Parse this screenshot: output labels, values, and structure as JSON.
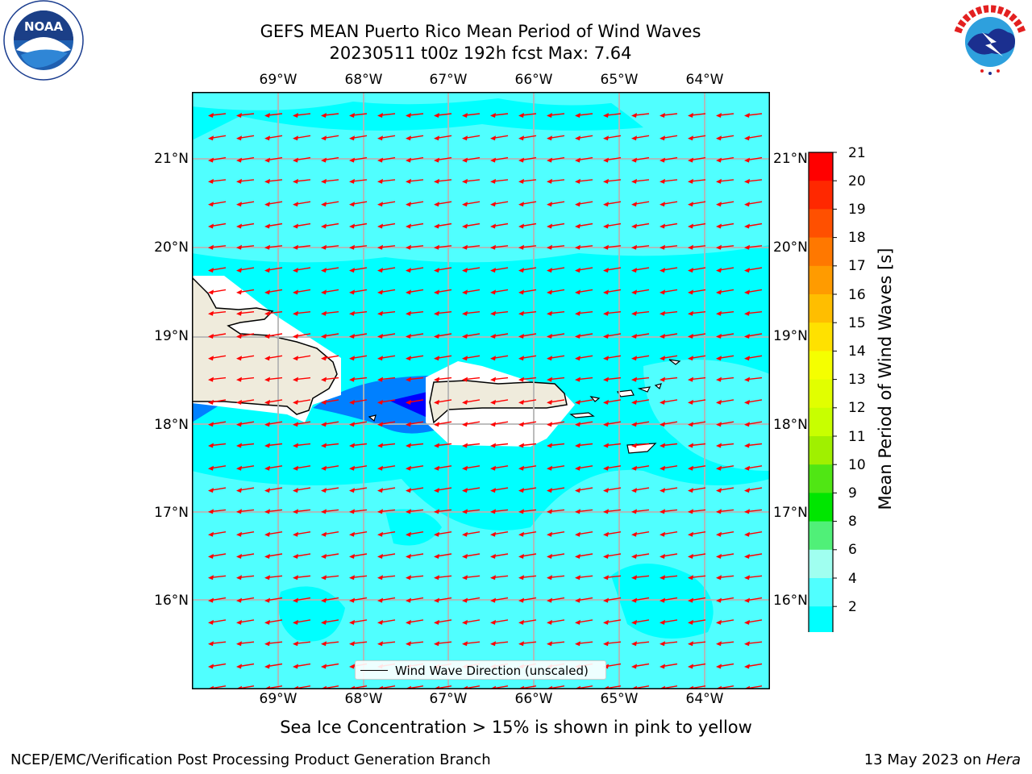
{
  "header": {
    "title_line1": "GEFS MEAN Puerto Rico Mean Period of Wind Waves",
    "title_line2": "20230511 t00z 192h fcst   Max: 7.64"
  },
  "logos": {
    "left": {
      "name": "NOAA",
      "text": "NOAA",
      "ring_text": "NATIONAL OCEANIC AND ATMOSPHERIC ADMINISTRATION · U.S. DEPARTMENT OF COMMERCE"
    },
    "right": {
      "name": "National Weather Service",
      "ring_text": "NATIONAL WEATHER SERVICE"
    }
  },
  "map": {
    "lon_labels": [
      "69°W",
      "68°W",
      "67°W",
      "66°W",
      "65°W",
      "64°W"
    ],
    "lat_labels": [
      "21°N",
      "20°N",
      "19°N",
      "18°N",
      "17°N",
      "16°N"
    ],
    "legend_label": "Wind Wave Direction (unscaled)",
    "colors": {
      "land": "#efebdc",
      "arrow": "#ff0000",
      "grid": "#b4b4b4"
    }
  },
  "colorbar": {
    "title": "Mean Period of Wind Waves [s]",
    "ticks": [
      "21",
      "20",
      "19",
      "18",
      "17",
      "16",
      "15",
      "14",
      "13",
      "12",
      "11",
      "10",
      "9",
      "8",
      "6",
      "4",
      "2"
    ],
    "colors_top_to_bottom": [
      "#ff0000",
      "#ff2800",
      "#ff5000",
      "#ff7800",
      "#ff9b00",
      "#ffbe00",
      "#ffe100",
      "#f5ff00",
      "#e1ff00",
      "#c8ff00",
      "#a0f000",
      "#50e614",
      "#00e600",
      "#50f078",
      "#a0fff0",
      "#50ffff",
      "#00ffff",
      "#0080ff",
      "#0000ff"
    ]
  },
  "notes": {
    "sea_ice": "Sea Ice Concentration > 15% is shown in pink to yellow"
  },
  "footer": {
    "left": "NCEP/EMC/Verification Post Processing Product Generation Branch",
    "right_date": "13 May 2023 on ",
    "right_host": "Hera"
  }
}
